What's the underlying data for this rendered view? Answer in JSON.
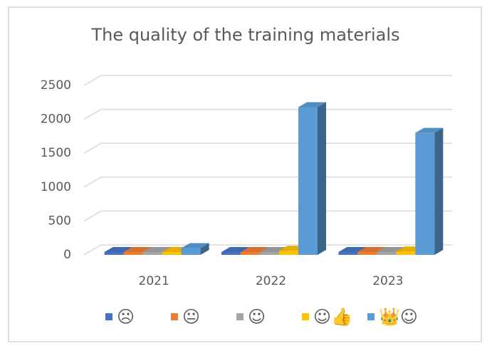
{
  "chart_data": {
    "type": "bar3d",
    "title": "The quality of the training materials",
    "categories": [
      "2021",
      "2022",
      "2023"
    ],
    "series": [
      {
        "name": "☹",
        "color": "#4472c4",
        "values": [
          10,
          10,
          10
        ]
      },
      {
        "name": "😐",
        "color": "#ed7d31",
        "values": [
          10,
          10,
          10
        ]
      },
      {
        "name": "☺",
        "color": "#a5a5a5",
        "values": [
          10,
          20,
          20
        ]
      },
      {
        "name": "☺👍",
        "color": "#ffc000",
        "values": [
          20,
          60,
          50
        ]
      },
      {
        "name": "👑☺",
        "color": "#5b9bd5",
        "values": [
          100,
          2180,
          1800
        ]
      }
    ],
    "ylim": [
      0,
      2500
    ],
    "yticks": [
      0,
      500,
      1000,
      1500,
      2000,
      2500
    ],
    "grid": true,
    "legend": "bottom"
  }
}
